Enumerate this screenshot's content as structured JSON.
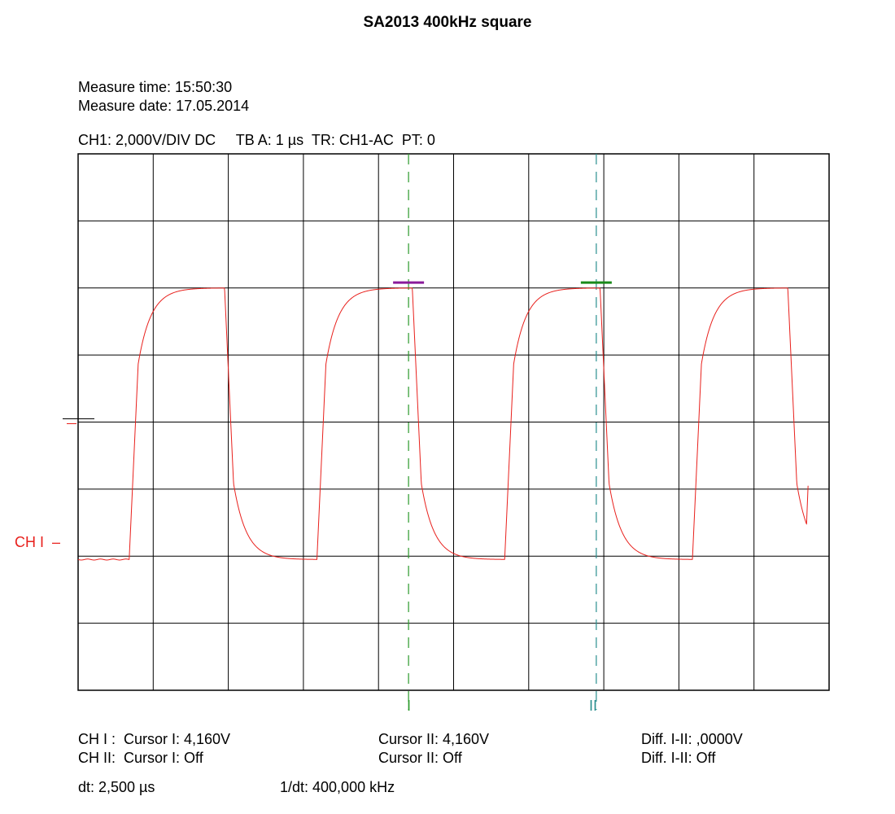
{
  "title": "SA2013 400kHz square",
  "measure": {
    "time": "Measure time: 15:50:30",
    "date": "Measure date: 17.05.2014"
  },
  "settings_line": "CH1: 2,000V/DIV DC     TB A: 1 µs  TR: CH1-AC  PT: 0",
  "channel_marker": "CH I  –",
  "cursor_labels": {
    "one": "I",
    "two": "II"
  },
  "readout": {
    "ch1_label": "CH I :  Cursor I: 4,160V",
    "ch1_cursor2": "Cursor II: 4,160V",
    "ch1_diff": "Diff. I-II: ,0000V",
    "ch2_label": "CH II:  Cursor I: Off",
    "ch2_cursor2": "Cursor II: Off",
    "ch2_diff": "Diff. I-II: Off",
    "dt": "dt: 2,500 µs",
    "inv_dt": "1/dt: 400,000 kHz"
  },
  "colors": {
    "trace": "#e8201c",
    "cursor1": "#2a9a2a",
    "cursor2": "#2a8f8f",
    "cursor1_marker": "#8a1a9a",
    "cursor2_marker": "#1a8a1a",
    "grid": "#000000"
  },
  "chart_data": {
    "type": "line",
    "grid": {
      "x_divisions": 10,
      "y_divisions": 8
    },
    "x_unit_per_div_us": 1,
    "y_unit_per_div_v": 2,
    "ground_level_div_from_top": 4,
    "signal": {
      "period_us": 2.5,
      "low_div_from_top": 6.05,
      "high_div_from_top": 2.0,
      "rise_starts_us": [
        0.68,
        3.18,
        5.68,
        8.18
      ],
      "fall_starts_us": [
        1.95,
        4.45,
        6.95,
        9.45
      ],
      "end_us": 9.7,
      "end_level_div_from_top": 4.95
    },
    "cursors": [
      {
        "name": "I",
        "x_us": 4.4,
        "level_v": 4.16
      },
      {
        "name": "II",
        "x_us": 6.9,
        "level_v": 4.16
      }
    ]
  }
}
